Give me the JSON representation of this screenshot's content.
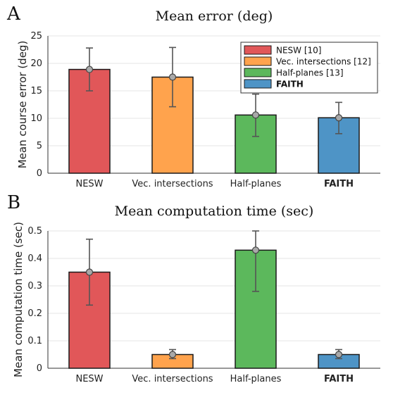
{
  "chart_data": [
    {
      "panel_letter": "A",
      "type": "bar",
      "title": "Mean error (deg)",
      "xlabel": "",
      "ylabel": "Mean course error (deg)",
      "ylim": [
        0,
        25
      ],
      "yticks": [
        "0",
        "5",
        "10",
        "15",
        "20",
        "25"
      ],
      "categories": [
        "NESW",
        "Vec. intersections",
        "Half-planes",
        "FAITH"
      ],
      "bold_categories": [
        "FAITH"
      ],
      "values": [
        18.9,
        17.5,
        10.6,
        10.1
      ],
      "error_low": [
        15.0,
        12.1,
        6.7,
        7.2
      ],
      "error_high": [
        22.8,
        22.9,
        14.4,
        12.9
      ],
      "colors": [
        "#e15759",
        "#ffa34d",
        "#5cb85c",
        "#4e94c6"
      ],
      "grid": true,
      "legend": {
        "placement": "top-right",
        "entries": [
          "NESW [10]",
          "Vec. intersections [12]",
          "Half-planes [13]",
          "FAITH"
        ],
        "bold_entries": [
          "FAITH"
        ]
      }
    },
    {
      "panel_letter": "B",
      "type": "bar",
      "title": "Mean computation time (sec)",
      "xlabel": "",
      "ylabel": "Mean computation time (sec)",
      "ylim": [
        0,
        0.5
      ],
      "yticks": [
        "0",
        "0.1",
        "0.2",
        "0.3",
        "0.4",
        "0.5"
      ],
      "categories": [
        "NESW",
        "Vec. intersections",
        "Half-planes",
        "FAITH"
      ],
      "bold_categories": [
        "FAITH"
      ],
      "values": [
        0.35,
        0.05,
        0.43,
        0.05
      ],
      "error_low": [
        0.23,
        0.035,
        0.28,
        0.035
      ],
      "error_high": [
        0.47,
        0.068,
        0.5,
        0.068
      ],
      "colors": [
        "#e15759",
        "#ffa34d",
        "#5cb85c",
        "#4e94c6"
      ],
      "grid": true
    }
  ]
}
